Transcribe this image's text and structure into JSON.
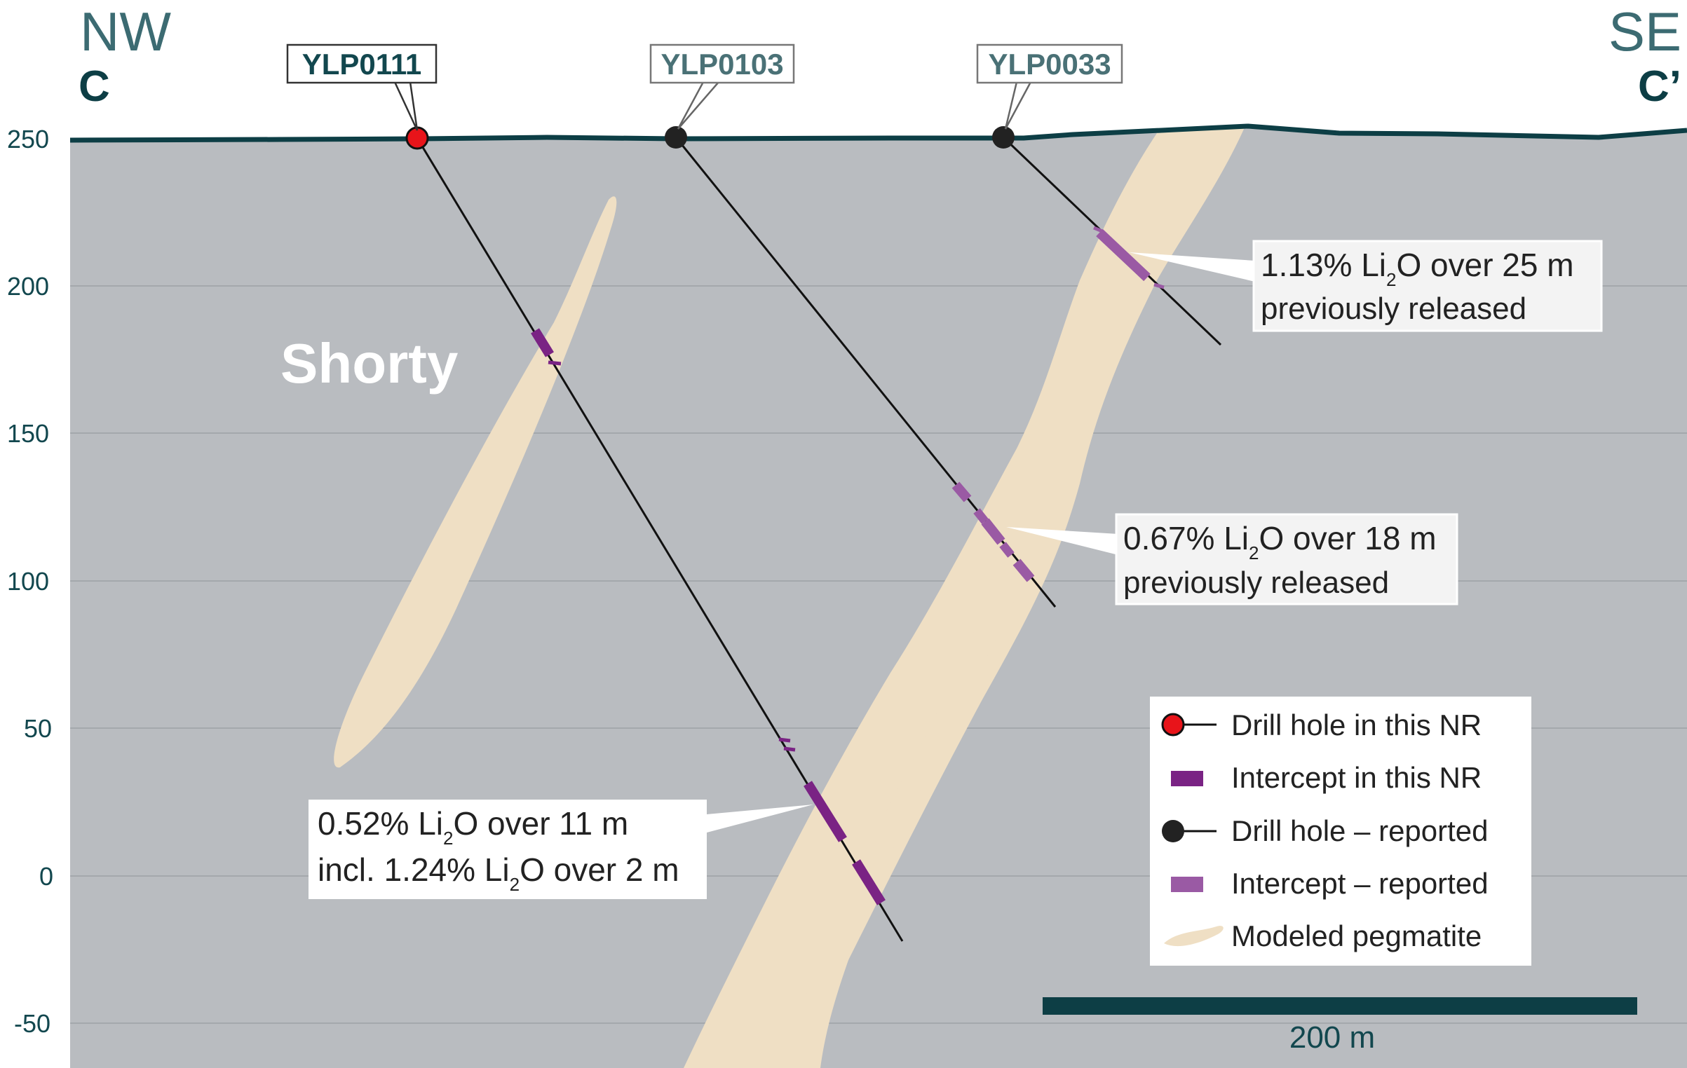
{
  "colors": {
    "host_rock": "#b9bcc0",
    "pegmatite": "#efdfc4",
    "topography": "#0d3e45",
    "direction_text": "#3c6b72",
    "axis_text": "#12474e",
    "new_hole": "#e8141a",
    "reported_hole": "#222222",
    "new_intercept": "#7a2384",
    "reported_intercept": "#9a5aa4",
    "scale_bar": "#0d3e45"
  },
  "section": {
    "left_direction": "NW",
    "left_section": "C",
    "right_direction": "SE",
    "right_section": "C’",
    "body_label": "Shorty"
  },
  "axis": {
    "ticks": [
      "250",
      "200",
      "150",
      "100",
      "50",
      "0",
      "-50"
    ]
  },
  "holes": [
    {
      "id": "YLP0111",
      "status": "new"
    },
    {
      "id": "YLP0103",
      "status": "reported"
    },
    {
      "id": "YLP0033",
      "status": "reported"
    }
  ],
  "callouts": {
    "ylp0033": {
      "line1": "1.13% Li",
      "line1_sub": "2",
      "line1_tail": "O over 25 m",
      "line2": "previously released"
    },
    "ylp0103": {
      "line1": "0.67% Li",
      "line1_sub": "2",
      "line1_tail": "O over 18 m",
      "line2": "previously released"
    },
    "ylp0111": {
      "line1": "0.52% Li",
      "line1_sub": "2",
      "line1_tail": "O over 11 m",
      "line2": "incl. 1.24% Li",
      "line2_sub": "2",
      "line2_tail": "O over 2 m"
    }
  },
  "legend": {
    "items": [
      "Drill hole in this NR",
      "Intercept in this NR",
      "Drill hole – reported",
      "Intercept – reported",
      "Modeled pegmatite"
    ]
  },
  "scale": {
    "label": "200 m"
  }
}
